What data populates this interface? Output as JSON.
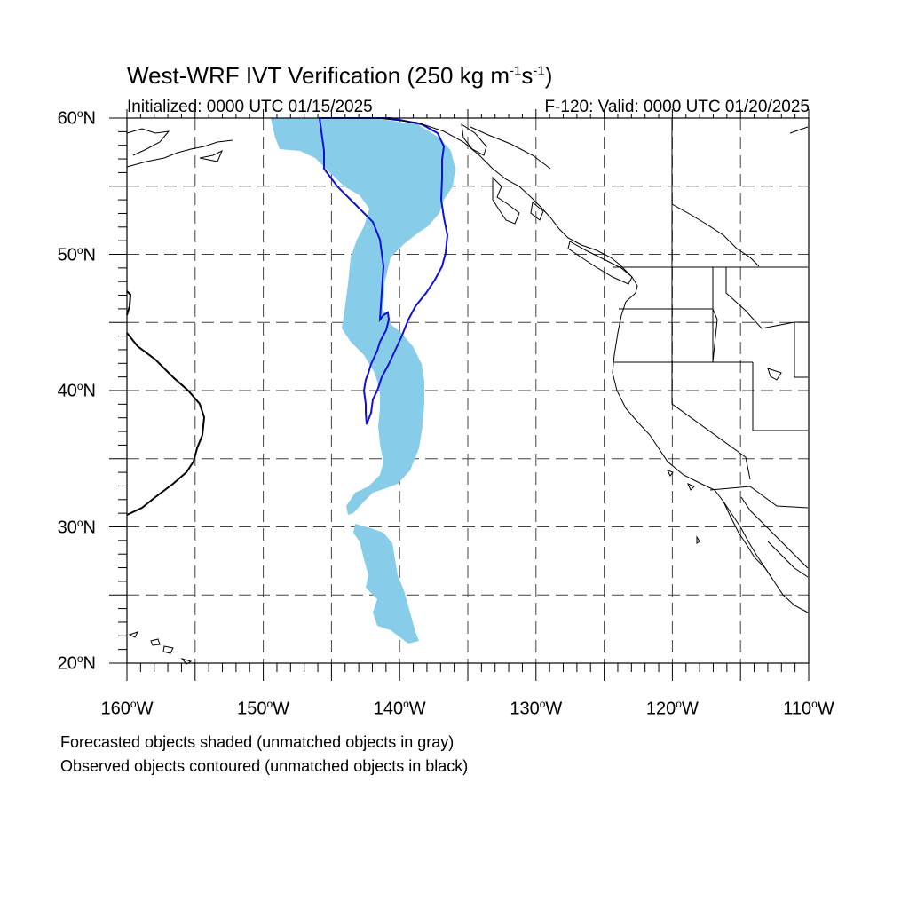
{
  "title": {
    "main": "West-WRF IVT Verification (250 kg m",
    "exp1": "-1",
    "mid": "s",
    "exp2": "-1",
    "close": ")"
  },
  "init_label": "Initialized: 0000 UTC 01/15/2025",
  "valid_label": "F-120: Valid: 0000 UTC 01/20/2025",
  "lat_labels": [
    {
      "value": "60",
      "suffix": "N"
    },
    {
      "value": "50",
      "suffix": "N"
    },
    {
      "value": "40",
      "suffix": "N"
    },
    {
      "value": "30",
      "suffix": "N"
    },
    {
      "value": "20",
      "suffix": "N"
    }
  ],
  "lon_labels": [
    {
      "value": "160",
      "suffix": "W"
    },
    {
      "value": "150",
      "suffix": "W"
    },
    {
      "value": "140",
      "suffix": "W"
    },
    {
      "value": "130",
      "suffix": "W"
    },
    {
      "value": "120",
      "suffix": "W"
    },
    {
      "value": "110",
      "suffix": "W"
    }
  ],
  "footnotes": [
    "Forecasted objects shaded (unmatched objects in gray)",
    "Observed objects contoured (unmatched objects in black)"
  ],
  "map": {
    "lon_range": [
      -160,
      -110
    ],
    "lat_range": [
      20,
      60
    ],
    "grid_interval_deg": 5,
    "grid_style": "dashed",
    "forecast_fill_color": "#87cdea",
    "matched_observed_color": "#1010d8",
    "unmatched_observed_color": "#000000",
    "coast_color": "#000000"
  }
}
